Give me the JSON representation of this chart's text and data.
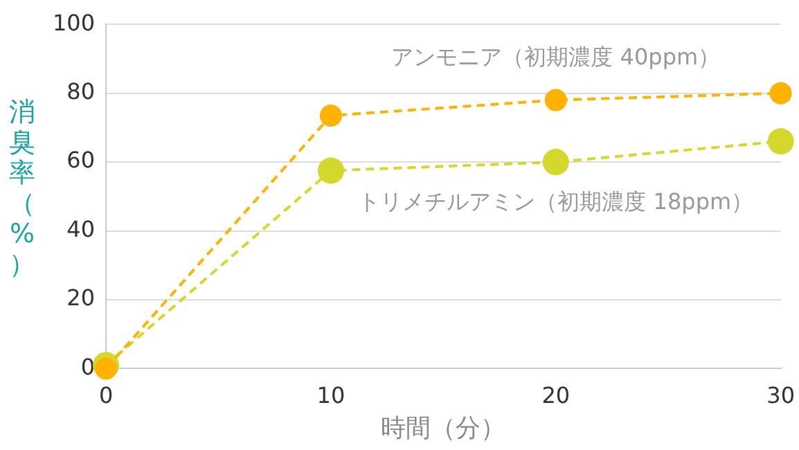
{
  "chart_data": {
    "type": "line",
    "xlabel": "時間（分）",
    "ylabel": "消臭率（%）",
    "x": [
      0,
      10,
      20,
      30
    ],
    "series": [
      {
        "name": "アンモニア（初期濃度 40ppm）",
        "color": "#ffb300",
        "values": [
          0,
          73.5,
          78,
          80
        ]
      },
      {
        "name": "トリメチルアミン（初期濃度 18ppm）",
        "color": "#d4d82c",
        "values": [
          1,
          57.5,
          60,
          66
        ]
      }
    ],
    "xlim": [
      0,
      30
    ],
    "xticks": [
      0,
      10,
      20,
      30
    ],
    "ylim": [
      0,
      100
    ],
    "yticks": [
      0,
      20,
      40,
      60,
      80,
      100
    ],
    "grid": "y",
    "legend": false,
    "marker": "circle",
    "line_style": "dashed"
  }
}
